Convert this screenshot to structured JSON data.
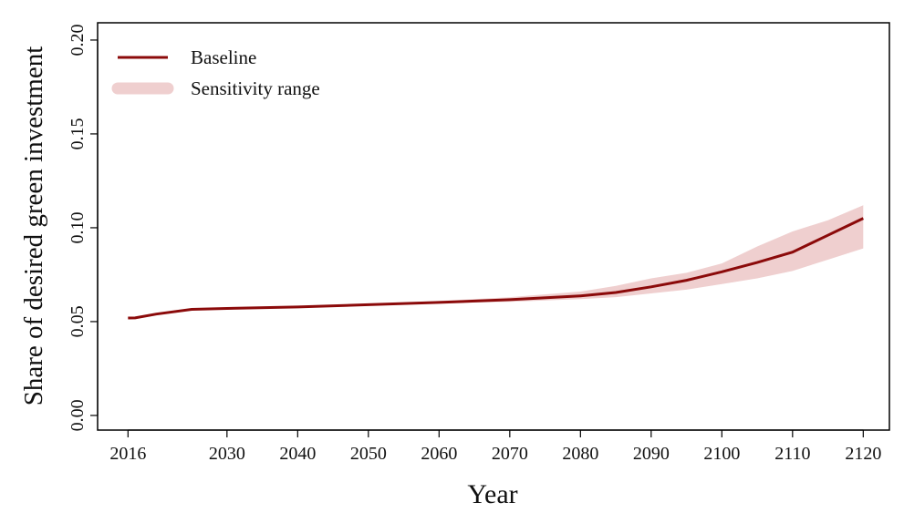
{
  "chart_data": {
    "type": "line",
    "x_label": "Year",
    "y_label": "Share of desired green investment",
    "x": [
      2016,
      2017,
      2020,
      2025,
      2030,
      2040,
      2050,
      2060,
      2070,
      2080,
      2085,
      2090,
      2095,
      2100,
      2105,
      2110,
      2115,
      2120
    ],
    "series": [
      {
        "name": "Baseline",
        "color": "#8b0a0a",
        "values": [
          0.0519,
          0.052,
          0.054,
          0.0565,
          0.057,
          0.0578,
          0.059,
          0.0602,
          0.0617,
          0.0637,
          0.0655,
          0.0685,
          0.072,
          0.0765,
          0.0815,
          0.087,
          0.096,
          0.105
        ]
      }
    ],
    "band": {
      "name": "Sensitivity range",
      "color": "#efcfcf",
      "lower": [
        0.0519,
        0.052,
        0.054,
        0.0565,
        0.057,
        0.0577,
        0.0588,
        0.0598,
        0.0605,
        0.062,
        0.063,
        0.065,
        0.067,
        0.07,
        0.073,
        0.077,
        0.083,
        0.089
      ],
      "upper": [
        0.0519,
        0.052,
        0.054,
        0.0565,
        0.057,
        0.058,
        0.0593,
        0.061,
        0.063,
        0.066,
        0.069,
        0.073,
        0.076,
        0.081,
        0.09,
        0.098,
        0.104,
        0.112
      ]
    },
    "xlim": [
      2011.7,
      2123.7
    ],
    "ylim": [
      -0.0078,
      0.2092
    ],
    "xticks": [
      2016,
      2030,
      2040,
      2050,
      2060,
      2070,
      2080,
      2090,
      2100,
      2110,
      2120
    ],
    "yticks": [
      {
        "value": 0,
        "label": "0.00"
      },
      0.05,
      {
        "value": 0.1,
        "label": "0.10"
      },
      0.15,
      {
        "value": 0.2,
        "label": "0.20"
      }
    ],
    "legend": "top-left"
  }
}
